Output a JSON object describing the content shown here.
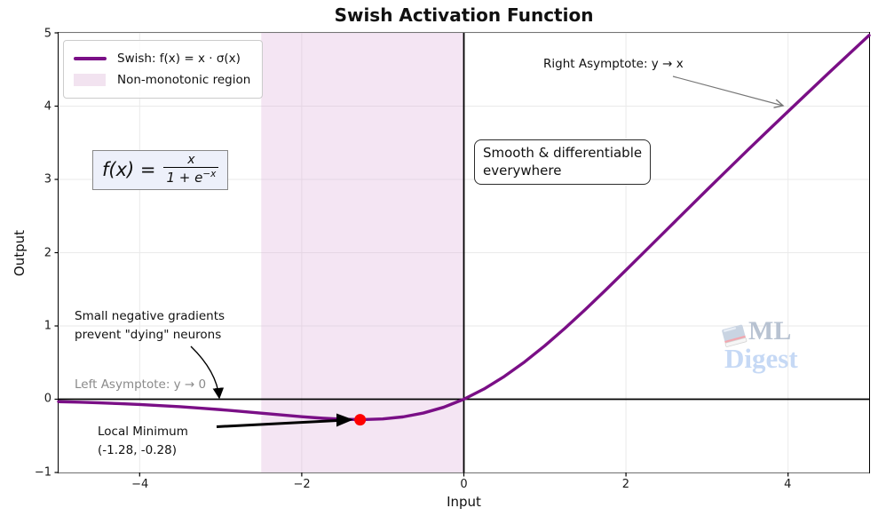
{
  "chart_data": {
    "type": "line",
    "title": "Swish Activation Function",
    "xlabel": "Input",
    "ylabel": "Output",
    "xlim": [
      -5,
      5
    ],
    "ylim": [
      -1,
      5
    ],
    "xticks": [
      -4,
      -2,
      0,
      2,
      4
    ],
    "yticks": [
      -1,
      0,
      1,
      2,
      3,
      4,
      5
    ],
    "grid": true,
    "grid_color": "#eaeaea",
    "legend_position": "upper left",
    "series": [
      {
        "name": "Swish: f(x) = x · σ(x)",
        "color": "#7a0f86",
        "x": [
          -5,
          -4.75,
          -4.5,
          -4.25,
          -4,
          -3.75,
          -3.5,
          -3.25,
          -3,
          -2.75,
          -2.5,
          -2.25,
          -2,
          -1.75,
          -1.5,
          -1.25,
          -1,
          -0.75,
          -0.5,
          -0.25,
          0,
          0.25,
          0.5,
          0.75,
          1,
          1.25,
          1.5,
          1.75,
          2,
          2.25,
          2.5,
          2.75,
          3,
          3.25,
          3.5,
          3.75,
          4,
          4.25,
          4.5,
          4.75,
          5
        ],
        "y": [
          -0.0335,
          -0.0407,
          -0.0494,
          -0.0598,
          -0.0719,
          -0.0862,
          -0.1026,
          -0.1213,
          -0.1423,
          -0.1652,
          -0.1897,
          -0.2145,
          -0.2384,
          -0.2591,
          -0.2736,
          -0.2784,
          -0.2689,
          -0.2406,
          -0.1888,
          -0.1095,
          0,
          0.1406,
          0.3112,
          0.5094,
          0.7311,
          0.9717,
          1.2264,
          1.491,
          1.7616,
          2.0354,
          2.3103,
          2.5846,
          2.8577,
          3.1287,
          3.3974,
          3.6637,
          3.9281,
          4.1903,
          4.4505,
          4.7092,
          4.9665
        ]
      }
    ],
    "shaded_region": {
      "x_start": -2.5,
      "x_end": 0,
      "color": "#dca8d8",
      "opacity": 0.3,
      "label": "Non-monotonic region"
    },
    "reference_lines": {
      "vertical_x": 0,
      "horizontal_y": 0,
      "color": "#000000"
    },
    "local_minimum": {
      "x": -1.28,
      "y": -0.28,
      "marker_color": "#fe0000"
    }
  },
  "legend": {
    "items": [
      {
        "label": "Swish: f(x) = x · σ(x)",
        "swatch": "line",
        "color": "#7a0f86"
      },
      {
        "label": "Non-monotonic region",
        "swatch": "patch",
        "color": "#f2e3f0"
      }
    ]
  },
  "formula": {
    "lhs": "f(x) =",
    "numerator": "x",
    "denominator_base": "1 + e",
    "denominator_exponent": "−x"
  },
  "annotations": {
    "right_asymptote": "Right Asymptote: y → x",
    "smooth_box": "Smooth & differentiable\neverywhere",
    "dying_neurons": "Small negative gradients\nprevent \"dying\" neurons",
    "left_asymptote": "Left Asymptote: y → 0",
    "local_minimum": "Local Minimum\n(-1.28, -0.28)"
  },
  "watermark": {
    "line1": "ML",
    "line2": "Digest",
    "icon": "book-icon"
  },
  "colors": {
    "curve": "#7a0f86",
    "region_tint": "#f2e3f0",
    "marker": "#fe0000",
    "gray_text": "#8a8a8a",
    "arrow_gray": "#777777"
  }
}
